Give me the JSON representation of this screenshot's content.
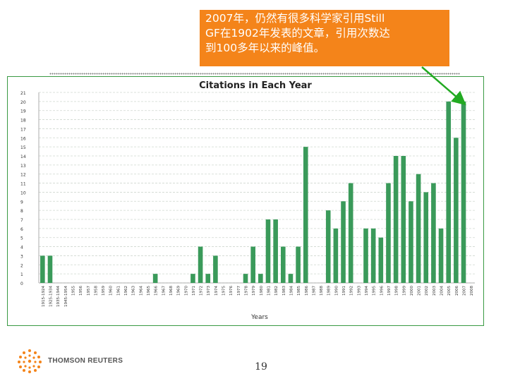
{
  "callout": {
    "lines": [
      "2007年，仍然有很多科学家引用Still",
      "GF在1902年发表的文章，引用次数达",
      "到100多年以来的峰值。"
    ],
    "background_color": "#f4841a"
  },
  "chart_data": {
    "type": "bar",
    "title": "Citations in Each Year",
    "xlabel": "Years",
    "ylabel": "",
    "ylim": [
      0,
      21
    ],
    "yticks": [
      0,
      1,
      2,
      3,
      4,
      5,
      6,
      7,
      8,
      9,
      10,
      11,
      12,
      13,
      14,
      15,
      16,
      17,
      18,
      19,
      20,
      21
    ],
    "grid": true,
    "bar_color": "#3a9a5a",
    "categories": [
      "1915-1924",
      "1925-1934",
      "1935-1944",
      "1945-1954",
      "1955",
      "1956",
      "1957",
      "1958",
      "1959",
      "1960",
      "1961",
      "1962",
      "1963",
      "1964",
      "1965",
      "1966",
      "1967",
      "1968",
      "1969",
      "1970",
      "1971",
      "1972",
      "1973",
      "1974",
      "1975",
      "1976",
      "1977",
      "1978",
      "1979",
      "1980",
      "1981",
      "1982",
      "1983",
      "1984",
      "1985",
      "1986",
      "1987",
      "1988",
      "1989",
      "1990",
      "1991",
      "1992",
      "1993",
      "1994",
      "1995",
      "1996",
      "1997",
      "1998",
      "1999",
      "2000",
      "2001",
      "2002",
      "2003",
      "2004",
      "2005",
      "2006",
      "2007",
      "2008"
    ],
    "values": [
      3,
      3,
      0,
      0,
      0,
      0,
      0,
      0,
      0,
      0,
      0,
      0,
      0,
      0,
      0,
      1,
      0,
      0,
      0,
      0,
      1,
      4,
      1,
      3,
      0,
      0,
      0,
      1,
      4,
      1,
      7,
      7,
      4,
      1,
      4,
      15,
      0,
      0,
      8,
      6,
      9,
      11,
      0,
      6,
      6,
      5,
      11,
      14,
      14,
      9,
      12,
      10,
      11,
      6,
      20,
      16,
      20,
      0
    ]
  },
  "arrow": {
    "color": "#22aa22"
  },
  "footer": {
    "logo_text": "THOMSON REUTERS",
    "page_number": "19"
  }
}
